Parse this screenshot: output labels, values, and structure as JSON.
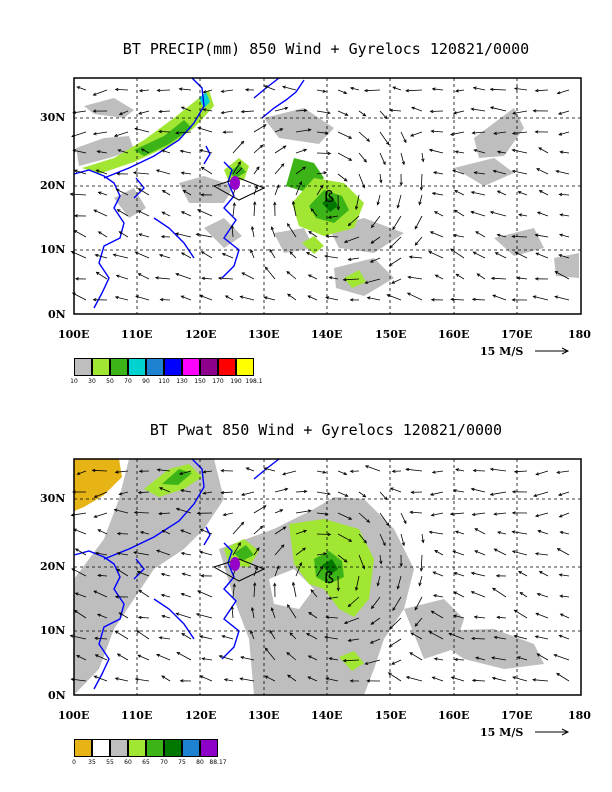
{
  "panels": [
    {
      "title": "BT PRECIP(mm) 850 Wind + Gyrelocs 120821/0000",
      "lat_labels": [
        "30N",
        "20N",
        "10N",
        "0N"
      ],
      "lon_labels": [
        "100E",
        "110E",
        "120E",
        "130E",
        "140E",
        "150E",
        "160E",
        "170E",
        "180"
      ],
      "reference_vector": "15 M/S",
      "colorbar": {
        "colors": [
          "#bebebe",
          "#a0e632",
          "#3cb418",
          "#00d2d2",
          "#1e82d2",
          "#0000ff",
          "#ff00ff",
          "#8c008c",
          "#ff0000",
          "#ffff00"
        ],
        "tick_labels": [
          "10",
          "30",
          "50",
          "70",
          "90",
          "110",
          "130",
          "150",
          "170",
          "190",
          "198.1"
        ]
      }
    },
    {
      "title": "BT Pwat 850 Wind + Gyrelocs 120821/0000",
      "lat_labels": [
        "30N",
        "20N",
        "10N",
        "0N"
      ],
      "lon_labels": [
        "100E",
        "110E",
        "120E",
        "130E",
        "140E",
        "150E",
        "160E",
        "170E",
        "180"
      ],
      "reference_vector": "15 M/S",
      "colorbar": {
        "colors": [
          "#e6b414",
          "#ffffff",
          "#bebebe",
          "#a0e632",
          "#3cb418",
          "#007800",
          "#1e82d2",
          "#8c00c8"
        ],
        "tick_labels": [
          "0",
          "35",
          "55",
          "60",
          "65",
          "70",
          "75",
          "80",
          "88.17"
        ]
      }
    }
  ],
  "map_extent": {
    "lon": [
      100,
      180
    ],
    "lat": [
      0,
      35
    ]
  },
  "gyre_marker_color": "#9600c8",
  "coast_color": "#0000ff"
}
